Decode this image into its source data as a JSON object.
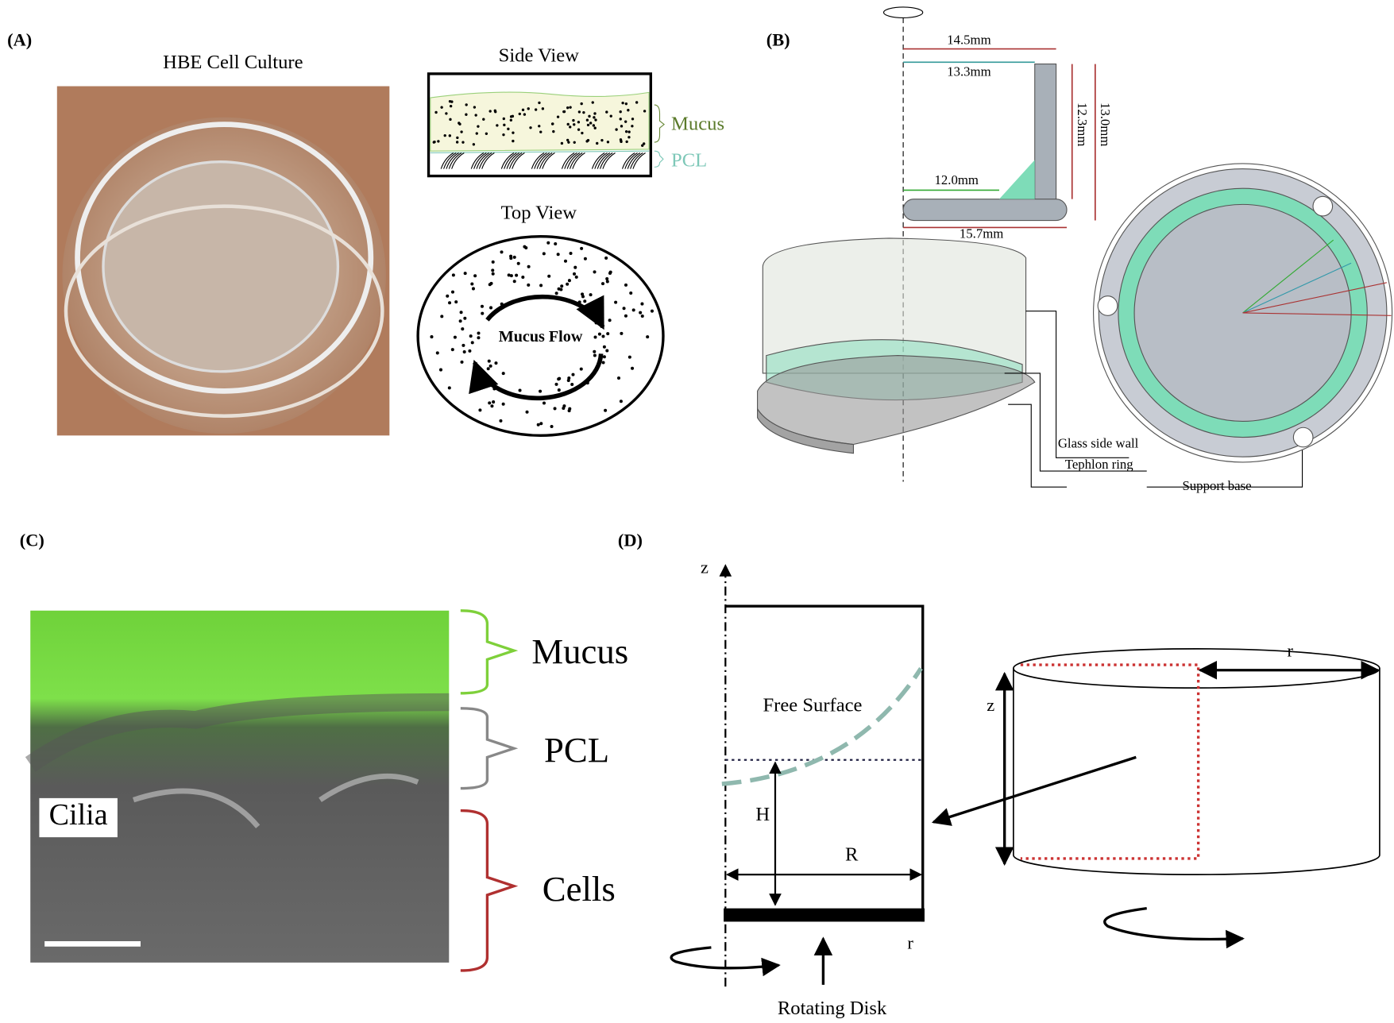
{
  "panels": {
    "a": {
      "label": "(A)",
      "photo_title": "HBE Cell Culture",
      "side_view": {
        "title": "Side View",
        "mucus": "Mucus",
        "pcl": "PCL"
      },
      "top_view": {
        "title": "Top View",
        "flow": "Mucus Flow"
      }
    },
    "b": {
      "label": "(B)",
      "dims": {
        "outer_radius": "14.5mm",
        "inner_radius": "13.3mm",
        "inner_height": "12.3mm",
        "outer_height": "13.0mm",
        "ring_radius": "12.0mm",
        "base_radius": "15.7mm"
      },
      "parts": {
        "wall": "Glass side wall",
        "ring": "Tephlon ring",
        "base": "Support base"
      }
    },
    "c": {
      "label": "(C)",
      "cilia": "Cilia",
      "layers": {
        "mucus": "Mucus",
        "pcl": "PCL",
        "cells": "Cells"
      }
    },
    "d": {
      "label": "(D)",
      "z_axis": "z",
      "free_surface": "Free Surface",
      "height": "H",
      "radius": "R",
      "r_axis": "r",
      "disk": "Rotating Disk",
      "cyl_z": "z",
      "cyl_r": "r"
    }
  }
}
